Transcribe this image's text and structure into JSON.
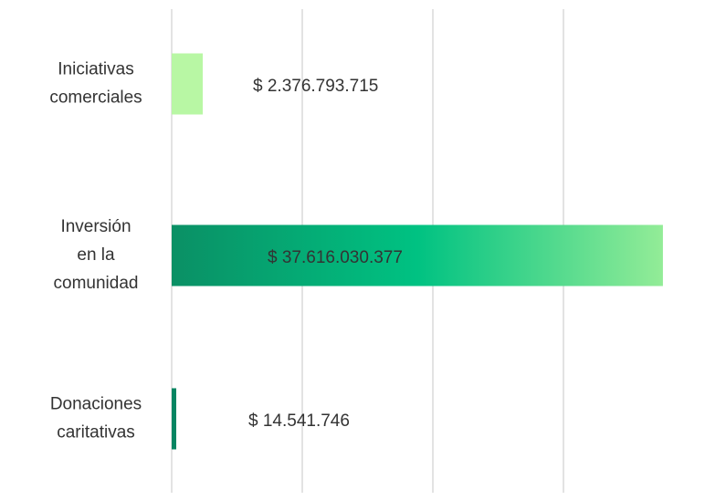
{
  "chart_data": {
    "type": "barh",
    "categories": [
      [
        "Iniciativas",
        "comerciales"
      ],
      [
        "Inversión",
        "en la",
        "comunidad"
      ],
      [
        "Donaciones",
        "caritativas"
      ]
    ],
    "values": [
      2376793715,
      37616030377,
      14541746
    ],
    "value_labels": [
      "$ 2.376.793.715",
      "$ 37.616.030.377",
      "$ 14.541.746"
    ],
    "colors": [
      "#b8f7a4",
      [
        "#0a9065",
        "#00c282",
        "#93ec97"
      ],
      "#078562"
    ],
    "xlim": [
      0,
      40000000000
    ],
    "xticks": [
      0,
      10000000000,
      20000000000,
      30000000000
    ],
    "grid": true
  }
}
